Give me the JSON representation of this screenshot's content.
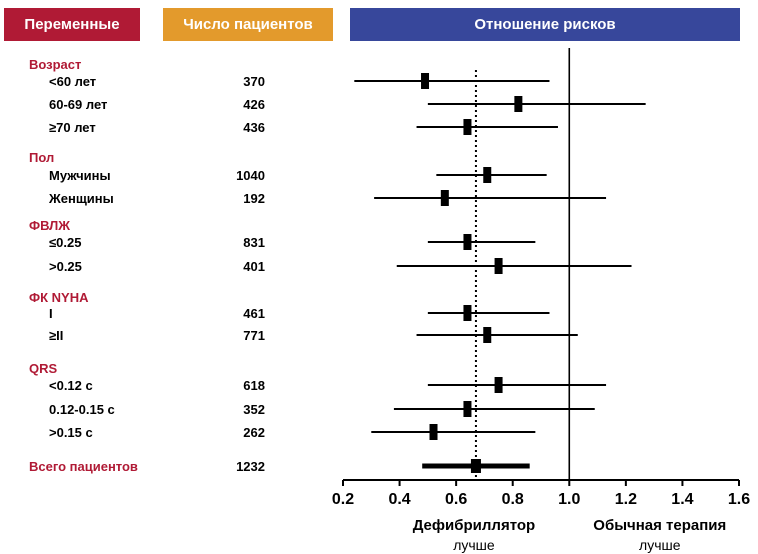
{
  "headers": {
    "variables": "Переменные",
    "patients": "Число пациентов",
    "hazard_ratio": "Отношение рисков"
  },
  "colors": {
    "variables_header": "#b01a35",
    "patients_header": "#e39a2c",
    "hr_header": "#37479b",
    "group_label": "#b01a35"
  },
  "chart_data": {
    "type": "forest",
    "x_axis": {
      "min": 0.2,
      "max": 1.6,
      "ticks": [
        "0.2",
        "0.4",
        "0.6",
        "0.8",
        "1.0",
        "1.2",
        "1.4",
        "1.6"
      ]
    },
    "reference_line": 1.0,
    "overall_line": 0.67,
    "left_label": "Дефибриллятор",
    "left_sublabel": "лучше",
    "right_label": "Обычная терапия",
    "right_sublabel": "лучше",
    "rows": [
      {
        "kind": "group",
        "label": "Возраст"
      },
      {
        "kind": "item",
        "label": "<60 лет",
        "n": "370",
        "hr": 0.49,
        "lo": 0.24,
        "hi": 0.93
      },
      {
        "kind": "item",
        "label": "60-69 лет",
        "n": "426",
        "hr": 0.82,
        "lo": 0.5,
        "hi": 1.27
      },
      {
        "kind": "item",
        "label": "≥70 лет",
        "n": "436",
        "hr": 0.64,
        "lo": 0.46,
        "hi": 0.96
      },
      {
        "kind": "group",
        "label": "Пол"
      },
      {
        "kind": "item",
        "label": "Мужчины",
        "n": "1040",
        "hr": 0.71,
        "lo": 0.53,
        "hi": 0.92
      },
      {
        "kind": "item",
        "label": "Женщины",
        "n": "192",
        "hr": 0.56,
        "lo": 0.31,
        "hi": 1.13
      },
      {
        "kind": "group",
        "label": "ФВЛЖ"
      },
      {
        "kind": "item",
        "label": "≤0.25",
        "n": "831",
        "hr": 0.64,
        "lo": 0.5,
        "hi": 0.88
      },
      {
        "kind": "item",
        "label": ">0.25",
        "n": "401",
        "hr": 0.75,
        "lo": 0.39,
        "hi": 1.22
      },
      {
        "kind": "group",
        "label": "ФК NYHA"
      },
      {
        "kind": "item",
        "label": "I",
        "n": "461",
        "hr": 0.64,
        "lo": 0.5,
        "hi": 0.93
      },
      {
        "kind": "item",
        "label": "≥II",
        "n": "771",
        "hr": 0.71,
        "lo": 0.46,
        "hi": 1.03
      },
      {
        "kind": "group",
        "label": "QRS"
      },
      {
        "kind": "item",
        "label": "<0.12 с",
        "n": "618",
        "hr": 0.75,
        "lo": 0.5,
        "hi": 1.13
      },
      {
        "kind": "item",
        "label": "0.12-0.15 с",
        "n": "352",
        "hr": 0.64,
        "lo": 0.38,
        "hi": 1.09
      },
      {
        "kind": "item",
        "label": ">0.15 с",
        "n": "262",
        "hr": 0.52,
        "lo": 0.3,
        "hi": 0.88
      },
      {
        "kind": "total",
        "label": "Всего пациентов",
        "n": "1232",
        "hr": 0.67,
        "lo": 0.48,
        "hi": 0.86
      }
    ]
  }
}
